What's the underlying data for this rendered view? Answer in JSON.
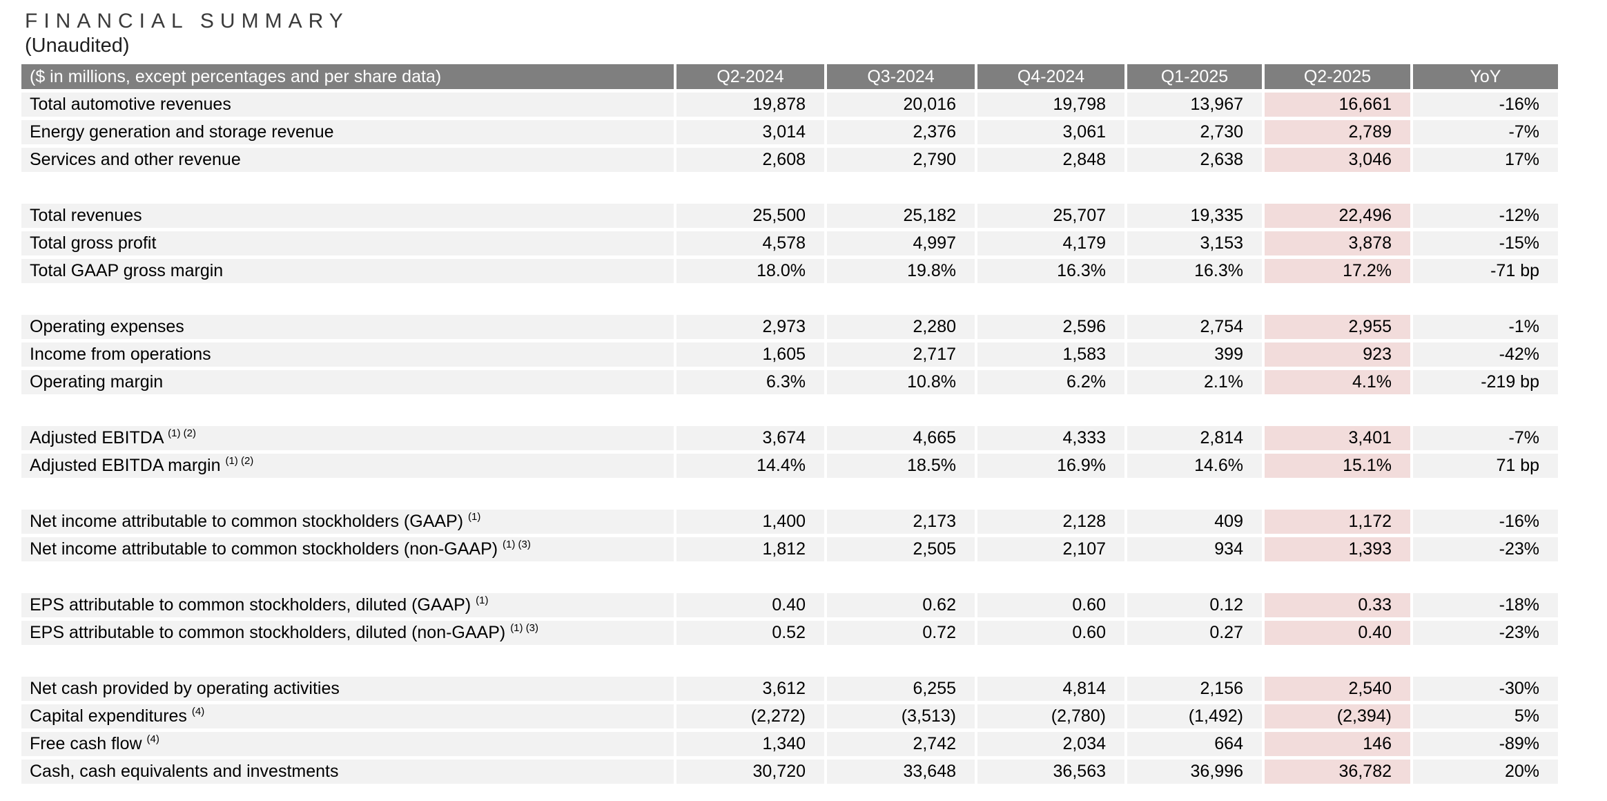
{
  "page": {
    "title": "FINANCIAL SUMMARY",
    "subtitle": "(Unaudited)"
  },
  "colors": {
    "header_bg": "#7f7f7f",
    "header_text": "#ffffff",
    "row_bg": "#f2f2f2",
    "highlight_bg": "#f2dcdb",
    "title_text": "#3a3a3a"
  },
  "table": {
    "label_header": "($ in millions, except percentages and per share data)",
    "columns": [
      "Q2-2024",
      "Q3-2024",
      "Q4-2024",
      "Q1-2025",
      "Q2-2025",
      "YoY"
    ],
    "highlight_column": "Q2-2025",
    "sections": [
      {
        "rows": [
          {
            "label": "Total automotive revenues",
            "sup": "",
            "values": [
              "19,878",
              "20,016",
              "19,798",
              "13,967",
              "16,661"
            ],
            "yoy": "-16%"
          },
          {
            "label": "Energy generation and storage revenue",
            "sup": "",
            "values": [
              "3,014",
              "2,376",
              "3,061",
              "2,730",
              "2,789"
            ],
            "yoy": "-7%"
          },
          {
            "label": "Services and other revenue",
            "sup": "",
            "values": [
              "2,608",
              "2,790",
              "2,848",
              "2,638",
              "3,046"
            ],
            "yoy": "17%"
          }
        ]
      },
      {
        "rows": [
          {
            "label": "Total revenues",
            "sup": "",
            "values": [
              "25,500",
              "25,182",
              "25,707",
              "19,335",
              "22,496"
            ],
            "yoy": "-12%"
          },
          {
            "label": "Total gross profit",
            "sup": "",
            "values": [
              "4,578",
              "4,997",
              "4,179",
              "3,153",
              "3,878"
            ],
            "yoy": "-15%"
          },
          {
            "label": "Total GAAP gross margin",
            "sup": "",
            "values": [
              "18.0%",
              "19.8%",
              "16.3%",
              "16.3%",
              "17.2%"
            ],
            "yoy": "-71 bp"
          }
        ]
      },
      {
        "rows": [
          {
            "label": "Operating expenses",
            "sup": "",
            "values": [
              "2,973",
              "2,280",
              "2,596",
              "2,754",
              "2,955"
            ],
            "yoy": "-1%"
          },
          {
            "label": "Income from operations",
            "sup": "",
            "values": [
              "1,605",
              "2,717",
              "1,583",
              "399",
              "923"
            ],
            "yoy": "-42%"
          },
          {
            "label": "Operating margin",
            "sup": "",
            "values": [
              "6.3%",
              "10.8%",
              "6.2%",
              "2.1%",
              "4.1%"
            ],
            "yoy": "-219 bp"
          }
        ]
      },
      {
        "rows": [
          {
            "label": "Adjusted EBITDA",
            "sup": "(1) (2)",
            "values": [
              "3,674",
              "4,665",
              "4,333",
              "2,814",
              "3,401"
            ],
            "yoy": "-7%"
          },
          {
            "label": "Adjusted EBITDA margin",
            "sup": "(1) (2)",
            "values": [
              "14.4%",
              "18.5%",
              "16.9%",
              "14.6%",
              "15.1%"
            ],
            "yoy": "71 bp"
          }
        ]
      },
      {
        "rows": [
          {
            "label": "Net income attributable to common stockholders (GAAP)",
            "sup": "(1)",
            "values": [
              "1,400",
              "2,173",
              "2,128",
              "409",
              "1,172"
            ],
            "yoy": "-16%"
          },
          {
            "label": "Net income attributable to common stockholders (non-GAAP)",
            "sup": "(1) (3)",
            "values": [
              "1,812",
              "2,505",
              "2,107",
              "934",
              "1,393"
            ],
            "yoy": "-23%"
          }
        ]
      },
      {
        "rows": [
          {
            "label": "EPS attributable to common stockholders, diluted (GAAP)",
            "sup": "(1)",
            "values": [
              "0.40",
              "0.62",
              "0.60",
              "0.12",
              "0.33"
            ],
            "yoy": "-18%"
          },
          {
            "label": "EPS attributable to common stockholders, diluted (non-GAAP)",
            "sup": "(1) (3)",
            "values": [
              "0.52",
              "0.72",
              "0.60",
              "0.27",
              "0.40"
            ],
            "yoy": "-23%"
          }
        ]
      },
      {
        "rows": [
          {
            "label": "Net cash provided by operating activities",
            "sup": "",
            "values": [
              "3,612",
              "6,255",
              "4,814",
              "2,156",
              "2,540"
            ],
            "yoy": "-30%"
          },
          {
            "label": "Capital expenditures",
            "sup": "(4)",
            "values": [
              "(2,272)",
              "(3,513)",
              "(2,780)",
              "(1,492)",
              "(2,394)"
            ],
            "yoy": "5%"
          },
          {
            "label": "Free cash flow",
            "sup": "(4)",
            "values": [
              "1,340",
              "2,742",
              "2,034",
              "664",
              "146"
            ],
            "yoy": "-89%"
          },
          {
            "label": "Cash, cash equivalents and investments",
            "sup": "",
            "values": [
              "30,720",
              "33,648",
              "36,563",
              "36,996",
              "36,782"
            ],
            "yoy": "20%"
          }
        ]
      }
    ]
  }
}
